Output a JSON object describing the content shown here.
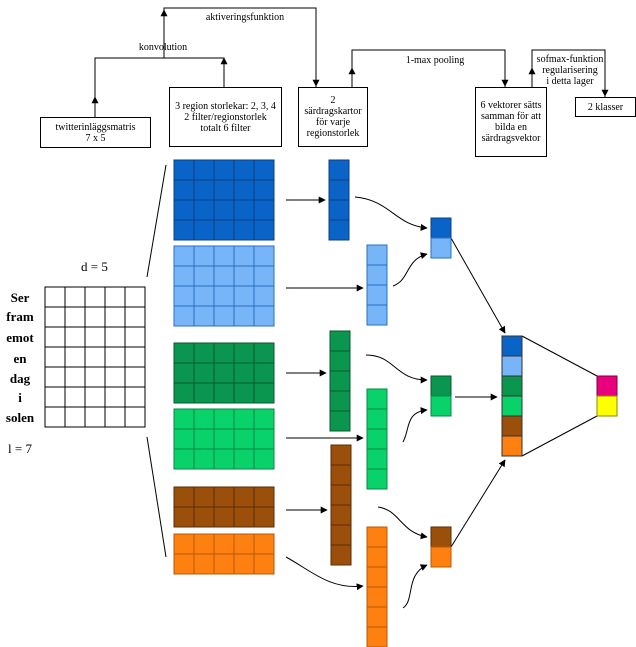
{
  "diagram": {
    "top_labels": {
      "activation": "aktiveringsfunktion",
      "convolution": "konvolution",
      "pooling": "1-max pooling",
      "softmax": "sofmax-funktion\nregularisering\ni detta lager"
    },
    "boxes": {
      "input_matrix": "twitterinläggsmatris\n7 x 5",
      "region_sizes": "3 region storlekar: 2, 3, 4\n2 filter/regionstorlek\ntotalt 6 filter",
      "feature_maps": "2 särdragskartor\nför varje\nregionstorlek",
      "vectors": "6 vektorer sätts\nsamman för att\nbilda en\nsärdragsvektor",
      "classes": "2 klasser"
    },
    "sentence_words": [
      "Ser",
      "fram",
      "emot",
      "en",
      "dag",
      "i",
      "solen"
    ],
    "d_label": "d = 5",
    "l_label": "l = 7"
  },
  "colors": {
    "dark_blue": "#0a64c8",
    "light_blue": "#78b4f8",
    "dark_green": "#0a964f",
    "light_green": "#0ad26a",
    "brown": "#9a4f0a",
    "orange": "#fd8010",
    "magenta": "#e8007c",
    "yellow": "#ffff00"
  }
}
